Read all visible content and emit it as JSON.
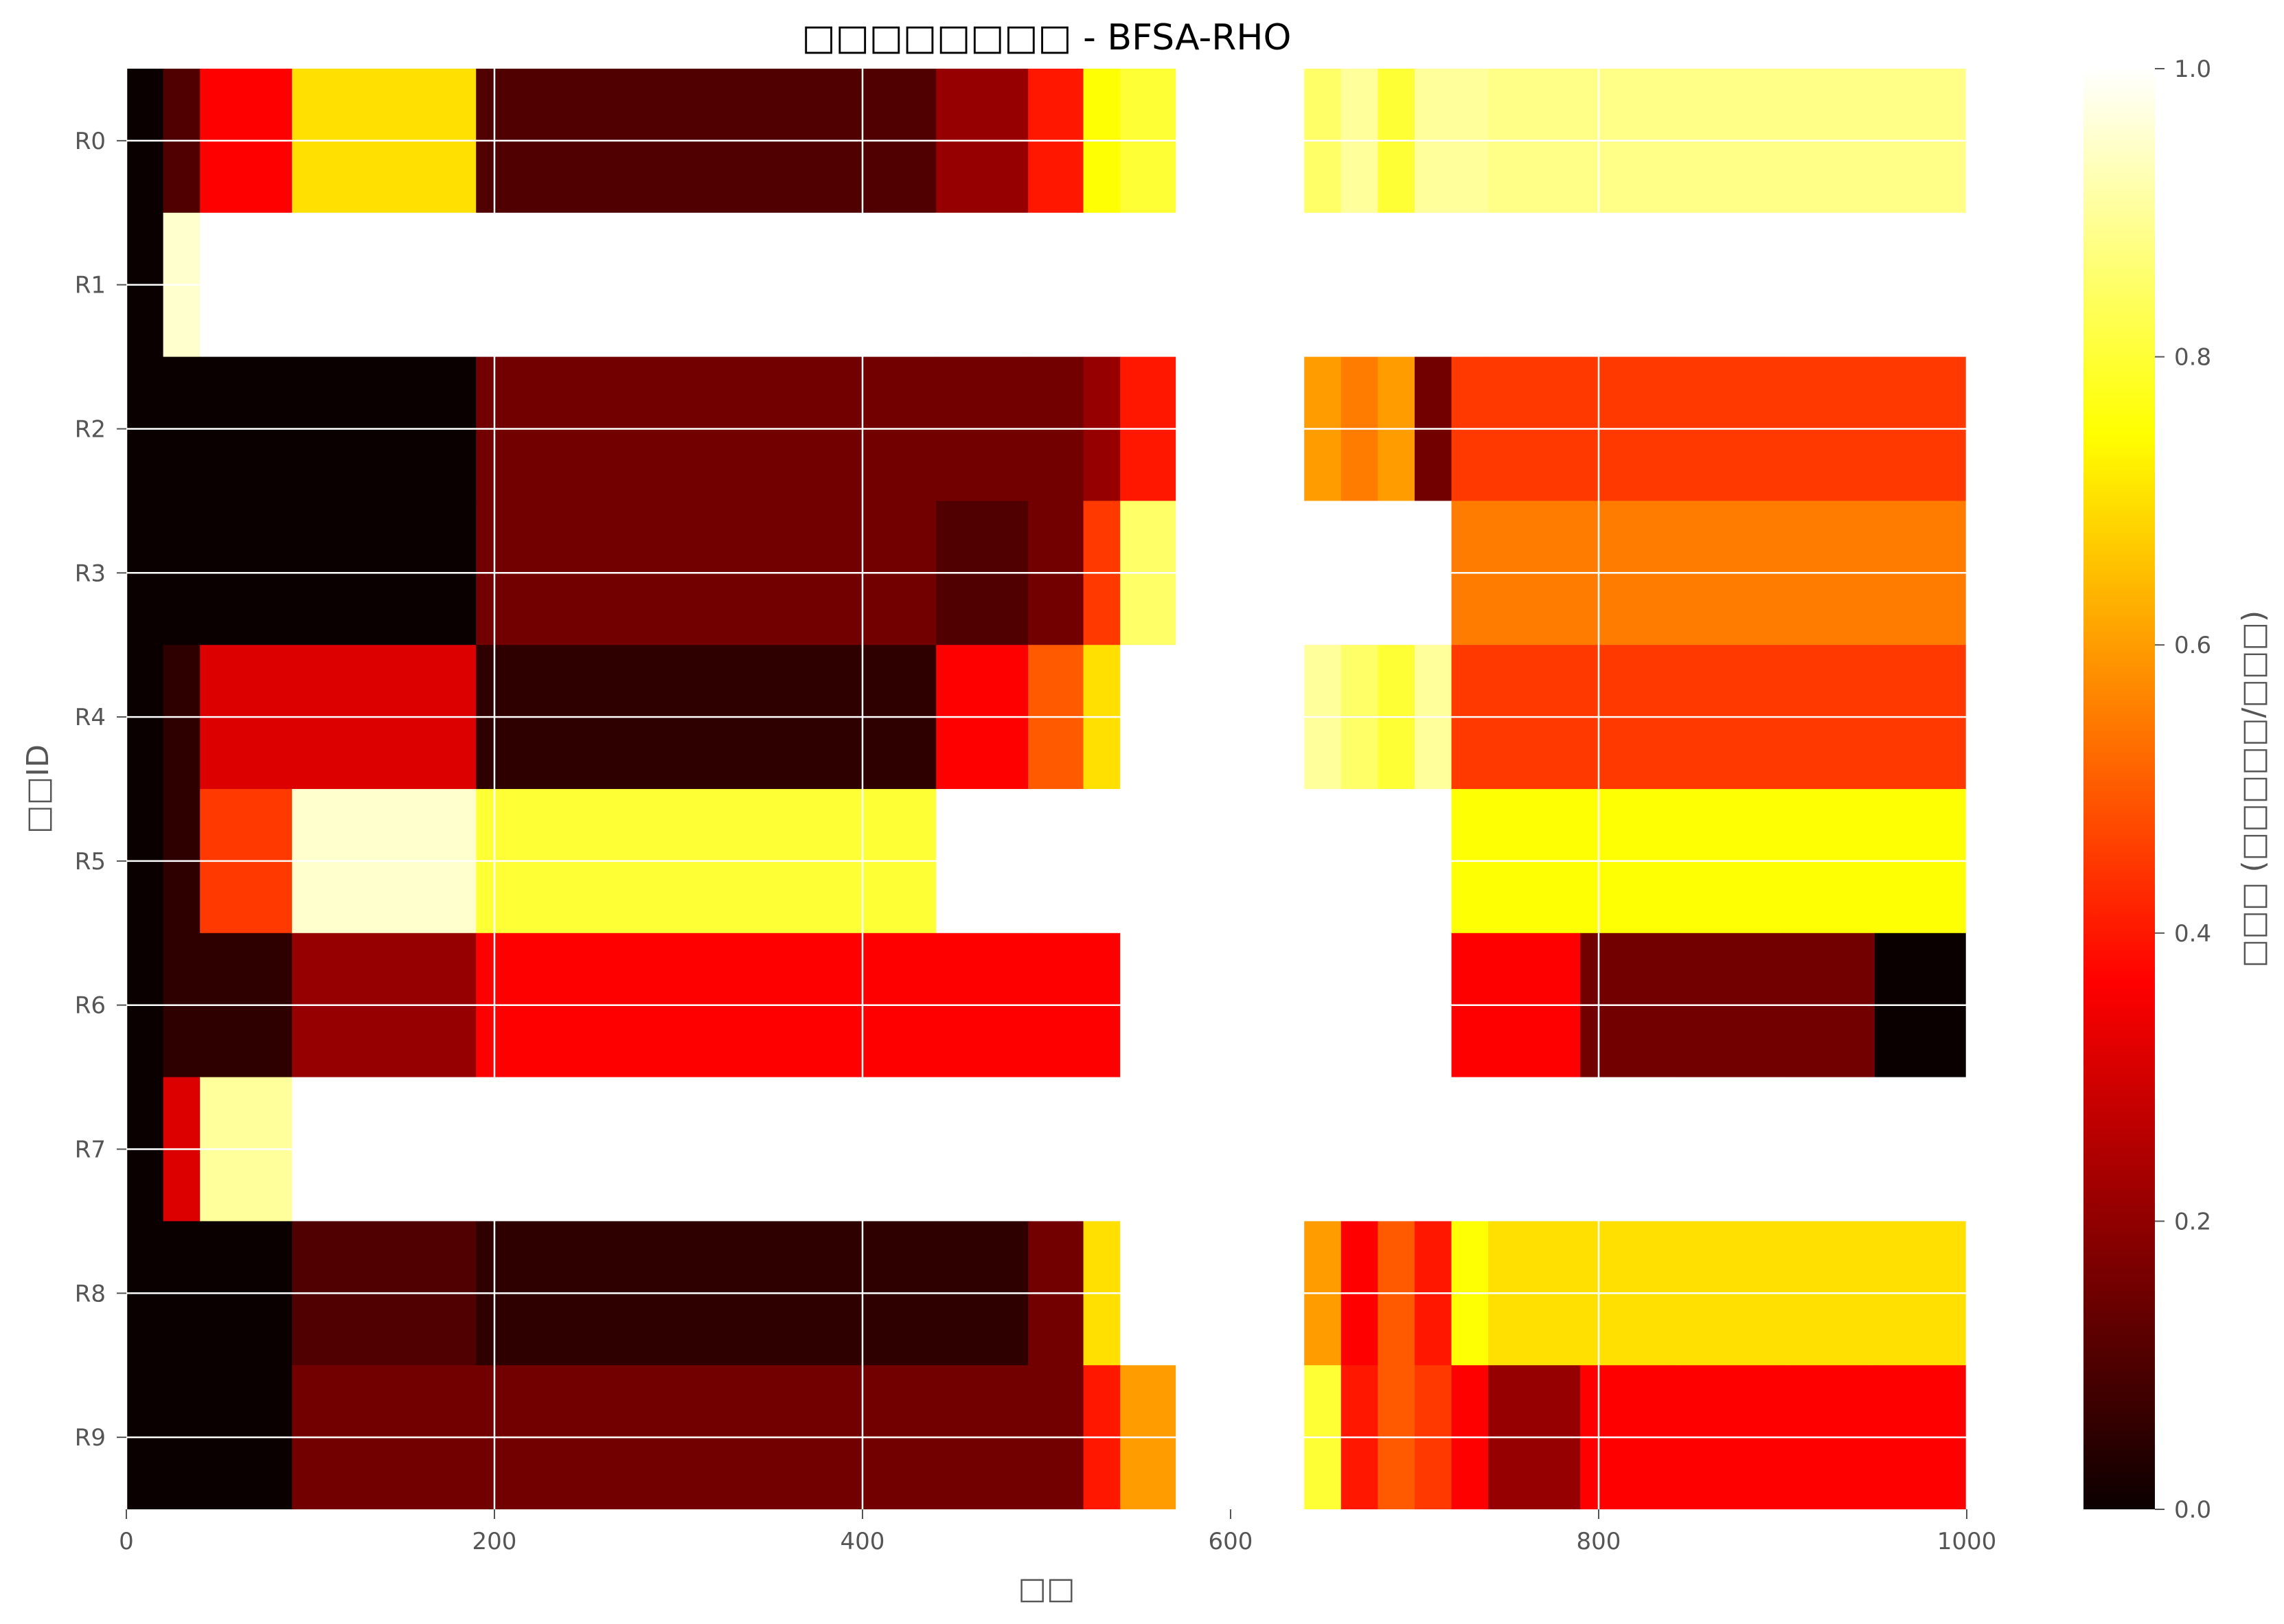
{
  "chart_data": {
    "type": "heatmap",
    "title": "□□□□□□□□ - BFSA-RHO",
    "xlabel": "□□",
    "ylabel": "□□ID",
    "colorbar_label": "□□□ (□□□□□/□□□)",
    "xlim": [
      0,
      1000
    ],
    "clim": [
      0,
      1
    ],
    "colormap": "hot",
    "grid": true,
    "x_ticks": [
      "0",
      "200",
      "400",
      "600",
      "800",
      "1000"
    ],
    "colorbar_ticks": [
      "0.0",
      "0.2",
      "0.4",
      "0.6",
      "0.8",
      "1.0"
    ],
    "rows": [
      "R0",
      "R1",
      "R2",
      "R3",
      "R4",
      "R5",
      "R6",
      "R7",
      "R8",
      "R9"
    ],
    "gap": [
      570,
      640
    ],
    "segments": [
      {
        "x": [
          0,
          20,
          40,
          90,
          190,
          440,
          490,
          520,
          540,
          570
        ],
        "rows": [
          [
            0.0,
            0.1,
            0.35,
            0.7,
            0.1,
            0.2,
            0.4,
            0.75,
            0.8,
            0.8
          ],
          [
            0.0,
            0.95,
            1.0,
            1.0,
            1.0,
            1.0,
            1.0,
            1.0,
            1.0,
            1.0
          ],
          [
            0.0,
            0.0,
            0.0,
            0.0,
            0.15,
            0.15,
            0.15,
            0.2,
            0.4,
            0.9
          ],
          [
            0.0,
            0.0,
            0.0,
            0.0,
            0.15,
            0.1,
            0.15,
            0.45,
            0.85,
            1.0
          ],
          [
            0.0,
            0.05,
            0.3,
            0.3,
            0.05,
            0.35,
            0.5,
            0.7,
            1.0,
            1.0
          ],
          [
            0.0,
            0.05,
            0.45,
            0.95,
            0.8,
            1.0,
            1.0,
            1.0,
            1.0,
            1.0
          ],
          [
            0.0,
            0.05,
            0.05,
            0.2,
            0.35,
            0.35,
            0.35,
            0.35,
            1.0,
            1.0
          ],
          [
            0.0,
            0.3,
            0.9,
            1.0,
            1.0,
            1.0,
            1.0,
            1.0,
            1.0,
            1.0
          ],
          [
            0.0,
            0.0,
            0.0,
            0.1,
            0.05,
            0.05,
            0.15,
            0.7,
            1.0,
            1.0
          ],
          [
            0.0,
            0.0,
            0.0,
            0.15,
            0.15,
            0.15,
            0.15,
            0.4,
            0.6,
            0.8
          ]
        ]
      },
      {
        "x": [
          640,
          660,
          680,
          700,
          720,
          740,
          790,
          840,
          900,
          950,
          1000
        ],
        "rows": [
          [
            0.85,
            0.9,
            0.8,
            0.9,
            0.9,
            0.88,
            0.88,
            0.88,
            0.88,
            0.88,
            0.88
          ],
          [
            1.0,
            1.0,
            1.0,
            1.0,
            1.0,
            1.0,
            1.0,
            1.0,
            1.0,
            1.0,
            1.0
          ],
          [
            0.6,
            0.55,
            0.6,
            0.15,
            0.45,
            0.45,
            0.45,
            0.45,
            0.45,
            0.45,
            0.45
          ],
          [
            1.0,
            1.0,
            1.0,
            1.0,
            0.55,
            0.55,
            0.55,
            0.55,
            0.55,
            0.55,
            0.55
          ],
          [
            0.9,
            0.85,
            0.8,
            0.9,
            0.45,
            0.45,
            0.45,
            0.45,
            0.45,
            0.45,
            0.45
          ],
          [
            1.0,
            1.0,
            1.0,
            1.0,
            0.75,
            0.75,
            0.75,
            0.75,
            0.75,
            0.75,
            0.75
          ],
          [
            1.0,
            1.0,
            1.0,
            1.0,
            0.35,
            0.35,
            0.15,
            0.15,
            0.15,
            0.0,
            0.0
          ],
          [
            1.0,
            1.0,
            1.0,
            1.0,
            1.0,
            1.0,
            1.0,
            1.0,
            1.0,
            1.0,
            1.0
          ],
          [
            0.6,
            0.35,
            0.5,
            0.4,
            0.75,
            0.7,
            0.7,
            0.7,
            0.7,
            0.7,
            0.7
          ],
          [
            0.8,
            0.4,
            0.5,
            0.45,
            0.35,
            0.2,
            0.35,
            0.35,
            0.35,
            0.35,
            0.35
          ]
        ]
      }
    ]
  }
}
